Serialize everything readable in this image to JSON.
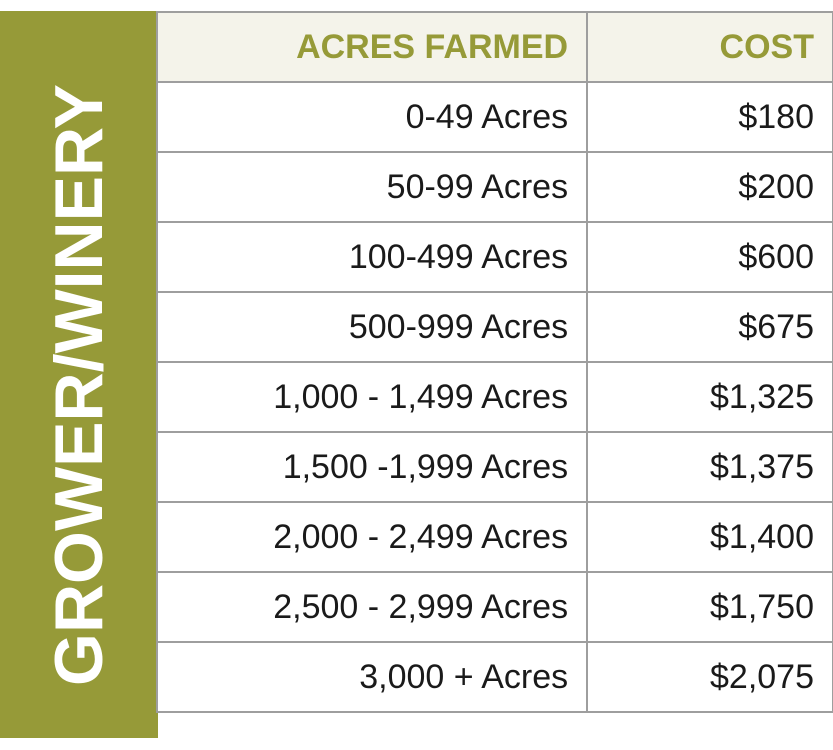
{
  "side_label": "GROWER/WINERY",
  "colors": {
    "accent": "#969a38",
    "header_bg": "#f4f3ea",
    "border": "#9e9e9e",
    "text": "#1a1a1a"
  },
  "table": {
    "headers": {
      "acres": "ACRES FARMED",
      "cost": "COST"
    },
    "rows": [
      {
        "acres": "0-49 Acres",
        "cost": "$180"
      },
      {
        "acres": "50-99 Acres",
        "cost": "$200"
      },
      {
        "acres": "100-499 Acres",
        "cost": "$600"
      },
      {
        "acres": "500-999 Acres",
        "cost": "$675"
      },
      {
        "acres": "1,000 - 1,499 Acres",
        "cost": "$1,325"
      },
      {
        "acres": "1,500 -1,999 Acres",
        "cost": "$1,375"
      },
      {
        "acres": "2,000 - 2,499 Acres",
        "cost": "$1,400"
      },
      {
        "acres": "2,500 - 2,999 Acres",
        "cost": "$1,750"
      },
      {
        "acres": "3,000 + Acres",
        "cost": "$2,075"
      }
    ]
  }
}
